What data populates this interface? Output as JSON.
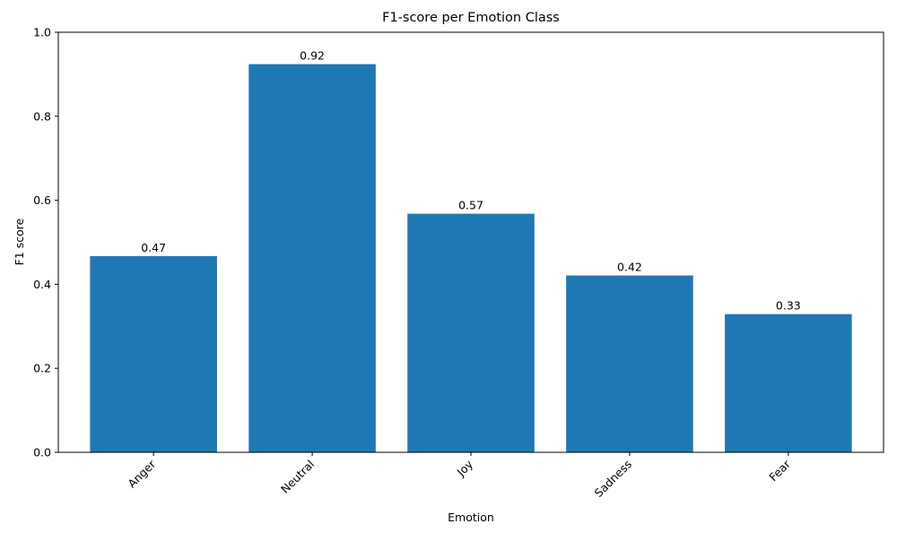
{
  "chart_data": {
    "type": "bar",
    "title": "F1-score per Emotion Class",
    "xlabel": "Emotion",
    "ylabel": "F1 score",
    "categories": [
      "Anger",
      "Neutral",
      "Joy",
      "Sadness",
      "Fear"
    ],
    "values": [
      0.467,
      0.924,
      0.568,
      0.421,
      0.329
    ],
    "value_labels": [
      "0.47",
      "0.92",
      "0.57",
      "0.42",
      "0.33"
    ],
    "ylim": [
      0,
      1.0
    ],
    "yticks": [
      0.0,
      0.2,
      0.4,
      0.6,
      0.8,
      1.0
    ],
    "ytick_labels": [
      "0.0",
      "0.2",
      "0.4",
      "0.6",
      "0.8",
      "1.0"
    ],
    "xtick_rotation": "45 degrees, right-aligned",
    "grid": false,
    "legend": "none",
    "colors": {
      "bar": "#1f77b4",
      "axis": "#000000",
      "background": "#ffffff"
    }
  }
}
